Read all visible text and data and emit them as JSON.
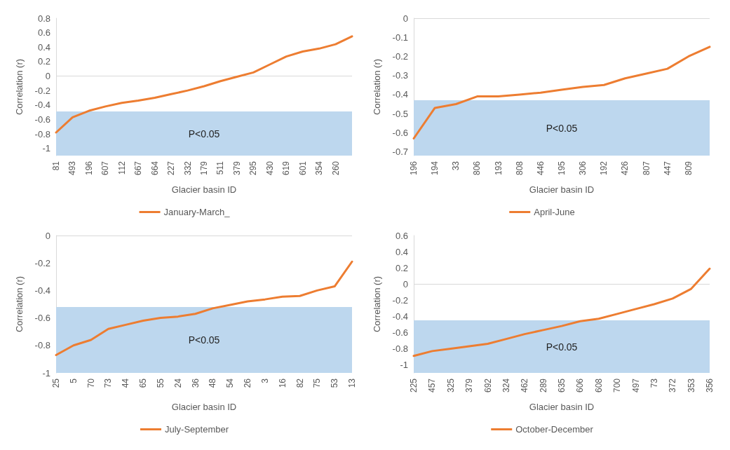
{
  "chart_data": [
    {
      "type": "line",
      "xlabel": "Glacier basin ID",
      "ylabel": "Correlation (r)",
      "categories": [
        "81",
        "493",
        "196",
        "607",
        "112",
        "667",
        "664",
        "227",
        "332",
        "179",
        "511",
        "379",
        "295",
        "430",
        "619",
        "601",
        "354",
        "260",
        null
      ],
      "series": [
        {
          "name": "January-March_",
          "color": "#ed7d31",
          "values": [
            -0.78,
            -0.57,
            -0.48,
            -0.42,
            -0.37,
            -0.34,
            -0.3,
            -0.25,
            -0.2,
            -0.14,
            -0.07,
            -0.01,
            0.05,
            0.16,
            0.27,
            0.34,
            0.38,
            0.44,
            0.55
          ]
        }
      ],
      "ylim": [
        -1.1,
        0.8
      ],
      "yticks": [
        -1,
        -0.8,
        -0.6,
        -0.4,
        -0.2,
        0,
        0.2,
        0.4,
        0.6,
        0.8
      ],
      "grid": false,
      "legend": "bottom",
      "ref_lines": [
        {
          "axis": "y",
          "value": 0,
          "color": "#d9d9d9"
        }
      ],
      "bands": [
        {
          "axis": "y",
          "from": -1.1,
          "to": -0.49,
          "label": "P<0.05",
          "color": "#bdd7ee"
        }
      ]
    },
    {
      "type": "line",
      "xlabel": "Glacier basin ID",
      "ylabel": "Correlation (r)",
      "categories": [
        "196",
        "194",
        "33",
        "806",
        "193",
        "808",
        "446",
        "195",
        "306",
        "192",
        "426",
        "807",
        "447",
        "809",
        null
      ],
      "series": [
        {
          "name": "April-June",
          "color": "#ed7d31",
          "values": [
            -0.63,
            -0.47,
            -0.45,
            -0.41,
            -0.41,
            -0.4,
            -0.39,
            -0.375,
            -0.36,
            -0.35,
            -0.315,
            -0.29,
            -0.265,
            -0.2,
            -0.15
          ]
        }
      ],
      "ylim": [
        -0.72,
        0
      ],
      "yticks": [
        -0.7,
        -0.6,
        -0.5,
        -0.4,
        -0.3,
        -0.2,
        -0.1,
        0
      ],
      "grid": false,
      "legend": "bottom",
      "ref_lines": [
        {
          "axis": "y",
          "value": 0,
          "color": "#d9d9d9"
        }
      ],
      "bands": [
        {
          "axis": "y",
          "from": -0.72,
          "to": -0.43,
          "label": "P<0.05",
          "color": "#bdd7ee"
        }
      ]
    },
    {
      "type": "line",
      "xlabel": "Glacier basin ID",
      "ylabel": "Correlation (r)",
      "categories": [
        "25",
        "5",
        "70",
        "73",
        "44",
        "65",
        "55",
        "24",
        "36",
        "48",
        "54",
        "26",
        "3",
        "16",
        "82",
        "75",
        "53",
        "13"
      ],
      "series": [
        {
          "name": "July-September",
          "color": "#ed7d31",
          "values": [
            -0.87,
            -0.8,
            -0.76,
            -0.68,
            -0.65,
            -0.62,
            -0.6,
            -0.59,
            -0.57,
            -0.53,
            -0.505,
            -0.48,
            -0.465,
            -0.445,
            -0.44,
            -0.4,
            -0.37,
            -0.19
          ]
        }
      ],
      "ylim": [
        -1,
        0
      ],
      "yticks": [
        -1,
        -0.8,
        -0.6,
        -0.4,
        -0.2,
        0
      ],
      "grid": false,
      "legend": "bottom",
      "ref_lines": [
        {
          "axis": "y",
          "value": 0,
          "color": "#d9d9d9"
        }
      ],
      "bands": [
        {
          "axis": "y",
          "from": -1,
          "to": -0.52,
          "label": "P<0.05",
          "color": "#bdd7ee"
        }
      ]
    },
    {
      "type": "line",
      "xlabel": "Glacier basin ID",
      "ylabel": "Correlation (r)",
      "categories": [
        "225",
        "457",
        "325",
        "379",
        "692",
        "324",
        "462",
        "289",
        "635",
        "606",
        "608",
        "700",
        "497",
        "73",
        "372",
        "353",
        "356"
      ],
      "series": [
        {
          "name": "October-December",
          "color": "#ed7d31",
          "values": [
            -0.89,
            -0.83,
            -0.8,
            -0.77,
            -0.74,
            -0.68,
            -0.62,
            -0.57,
            -0.52,
            -0.46,
            -0.43,
            -0.37,
            -0.31,
            -0.25,
            -0.18,
            -0.06,
            0.19
          ]
        }
      ],
      "ylim": [
        -1.1,
        0.6
      ],
      "yticks": [
        -1,
        -0.8,
        -0.6,
        -0.4,
        -0.2,
        0,
        0.2,
        0.4,
        0.6
      ],
      "grid": false,
      "legend": "bottom",
      "ref_lines": [
        {
          "axis": "y",
          "value": 0,
          "color": "#d9d9d9"
        }
      ],
      "bands": [
        {
          "axis": "y",
          "from": -1.1,
          "to": -0.45,
          "label": "P<0.05",
          "color": "#bdd7ee"
        }
      ]
    }
  ]
}
